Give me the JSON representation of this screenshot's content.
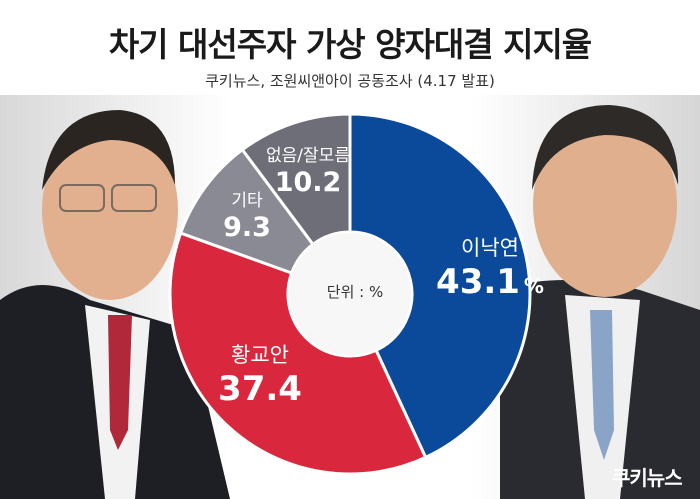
{
  "title": "차기 대선주자 가상 양자대결 지지율",
  "subtitle": "쿠키뉴스, 조원씨앤아이 공동조사 (4.17 발표)",
  "brand": "쿠키뉴스",
  "colors": {
    "blue": "#0b4a9b",
    "red": "#d9273d",
    "gray_light": "#8a8a94",
    "gray_dark": "#6e6e78",
    "center": "#f7f7f7"
  },
  "chart_data": {
    "type": "pie",
    "unit_label": "단위 : %",
    "slices": [
      {
        "name": "이낙연",
        "value": 43.1,
        "color": "#0b4a9b",
        "suffix": "%"
      },
      {
        "name": "황교안",
        "value": 37.4,
        "color": "#d9273d",
        "suffix": ""
      },
      {
        "name": "기타",
        "value": 9.3,
        "color": "#8a8a94",
        "suffix": ""
      },
      {
        "name": "없음/잘모름",
        "value": 10.2,
        "color": "#6e6e78",
        "suffix": ""
      }
    ]
  }
}
